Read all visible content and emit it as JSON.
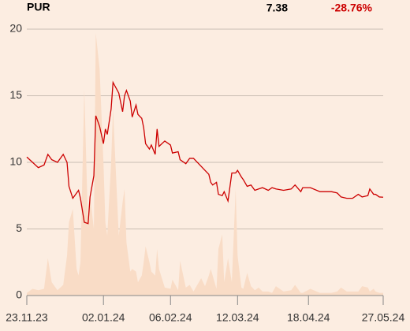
{
  "chart_data": {
    "type": "line",
    "title": "PUR",
    "last_price": "7.38",
    "change": "-28.76%",
    "x": [
      "2023-11-23",
      "2023-11-26",
      "2023-11-29",
      "2023-12-02",
      "2023-12-04",
      "2023-12-06",
      "2023-12-09",
      "2023-12-12",
      "2023-12-14",
      "2023-12-15",
      "2023-12-17",
      "2023-12-19",
      "2023-12-20",
      "2023-12-21",
      "2023-12-23",
      "2023-12-25",
      "2023-12-26",
      "2023-12-28",
      "2023-12-29",
      "2023-12-31",
      "2024-01-02",
      "2024-01-03",
      "2024-01-04",
      "2024-01-06",
      "2024-01-07",
      "2024-01-10",
      "2024-01-12",
      "2024-01-13",
      "2024-01-14",
      "2024-01-16",
      "2024-01-17",
      "2024-01-19",
      "2024-01-20",
      "2024-01-22",
      "2024-01-23",
      "2024-01-24",
      "2024-01-26",
      "2024-01-27",
      "2024-01-29",
      "2024-01-30",
      "2024-01-31",
      "2024-02-03",
      "2024-02-06",
      "2024-02-07",
      "2024-02-10",
      "2024-02-11",
      "2024-02-14",
      "2024-02-16",
      "2024-02-18",
      "2024-02-22",
      "2024-02-24",
      "2024-02-26",
      "2024-02-27",
      "2024-02-28",
      "2024-03-01",
      "2024-03-02",
      "2024-03-04",
      "2024-03-05",
      "2024-03-07",
      "2024-03-09",
      "2024-03-11",
      "2024-03-12",
      "2024-03-14",
      "2024-03-15",
      "2024-03-17",
      "2024-03-19",
      "2024-03-21",
      "2024-03-23",
      "2024-03-25",
      "2024-03-28",
      "2024-03-30",
      "2024-04-01",
      "2024-04-05",
      "2024-04-09",
      "2024-04-11",
      "2024-04-14",
      "2024-04-15",
      "2024-04-19",
      "2024-04-24",
      "2024-04-30",
      "2024-05-03",
      "2024-05-05",
      "2024-05-08",
      "2024-05-11",
      "2024-05-14",
      "2024-05-16",
      "2024-05-19",
      "2024-05-20",
      "2024-05-22",
      "2024-05-23",
      "2024-05-25",
      "2024-05-27"
    ],
    "values": [
      10.4,
      10.0,
      9.6,
      9.8,
      10.6,
      10.2,
      10.0,
      10.6,
      10.0,
      8.2,
      7.3,
      7.7,
      7.9,
      7.3,
      5.5,
      5.4,
      7.4,
      9.0,
      13.5,
      12.7,
      11.4,
      12.5,
      12.1,
      14.0,
      16.0,
      15.2,
      13.8,
      15.0,
      15.4,
      14.6,
      13.4,
      14.3,
      13.6,
      13.3,
      12.6,
      11.4,
      11.0,
      11.3,
      10.6,
      12.5,
      11.2,
      11.6,
      11.3,
      10.7,
      10.8,
      10.2,
      9.9,
      10.3,
      10.3,
      9.7,
      9.4,
      9.1,
      8.5,
      8.3,
      8.5,
      7.6,
      7.5,
      7.8,
      7.1,
      9.2,
      9.2,
      9.4,
      8.9,
      8.7,
      8.2,
      8.3,
      7.9,
      8.0,
      8.1,
      7.9,
      8.1,
      8.0,
      7.9,
      8.0,
      8.3,
      7.8,
      8.1,
      8.1,
      7.8,
      7.8,
      7.7,
      7.4,
      7.3,
      7.3,
      7.6,
      7.4,
      7.5,
      8.0,
      7.6,
      7.6,
      7.4,
      7.38
    ],
    "color": "#cc0000",
    "volume": {
      "color": "#f9dcc6",
      "values": [
        0.2,
        0.5,
        0.4,
        0.5,
        2.8,
        1.0,
        0.4,
        0.8,
        3.0,
        5.5,
        6.5,
        2.0,
        1.5,
        2.5,
        15.5,
        5.0,
        7.5,
        5.0,
        19.7,
        17.0,
        10.0,
        5.5,
        4.5,
        10.0,
        14.0,
        4.5,
        7.0,
        8.0,
        4.0,
        1.8,
        2.0,
        1.8,
        1.0,
        1.5,
        2.5,
        3.7,
        2.5,
        1.8,
        1.5,
        3.5,
        2.0,
        0.6,
        0.5,
        1.2,
        0.4,
        2.6,
        0.6,
        0.8,
        0.3,
        1.3,
        0.7,
        1.5,
        2.0,
        1.5,
        0.5,
        3.5,
        4.6,
        1.0,
        2.8,
        1.0,
        8.0,
        3.0,
        0.6,
        0.5,
        1.7,
        0.7,
        0.4,
        0.6,
        0.3,
        0.3,
        0.2,
        0.7,
        0.3,
        0.4,
        0.8,
        0.2,
        0.2,
        0.5,
        0.2,
        0.2,
        0.3,
        0.6,
        0.3,
        0.3,
        0.3,
        0.7,
        0.6,
        0.3,
        0.5,
        0.3,
        0.2,
        0.2
      ]
    },
    "xlim": [
      "2023-11-23",
      "2024-05-27"
    ],
    "xticks": [
      {
        "value": "2023-11-23",
        "label": "23.11.23"
      },
      {
        "value": "2024-01-02",
        "label": "02.01.24"
      },
      {
        "value": "2024-02-06",
        "label": "06.02.24"
      },
      {
        "value": "2024-03-12",
        "label": "12.03.24"
      },
      {
        "value": "2024-04-18",
        "label": "18.04.24"
      },
      {
        "value": "2024-05-27",
        "label": "27.05.24"
      }
    ],
    "ylim": [
      0,
      20
    ],
    "yticks": [
      0,
      5,
      10,
      15,
      20
    ],
    "grid": true
  }
}
